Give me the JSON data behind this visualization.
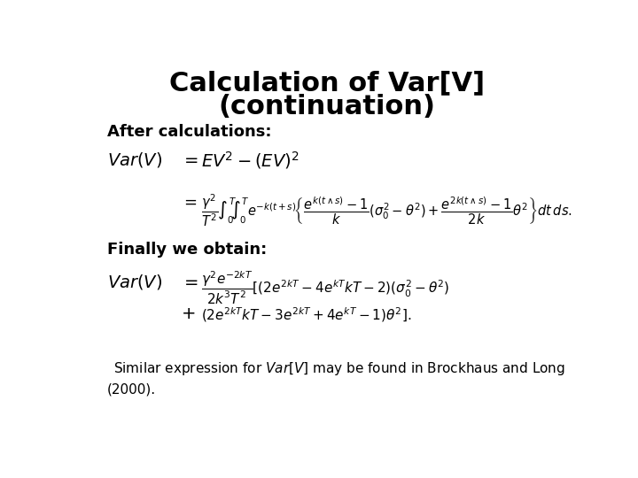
{
  "title_line1": "Calculation of Var[V]",
  "title_line2": "(continuation)",
  "title_fontsize": 22,
  "bg_color": "#ffffff",
  "text_color": "#000000",
  "label_after": "After calculations:",
  "label_finally": "Finally we obtain:",
  "footnote_size": 11
}
